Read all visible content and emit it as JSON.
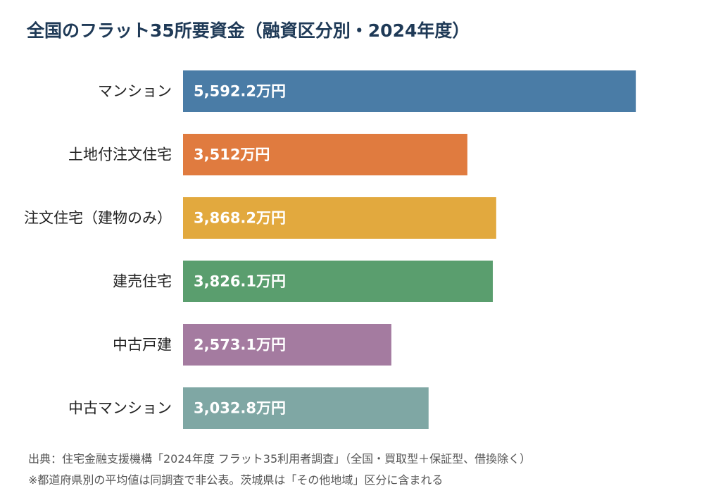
{
  "chart_data": {
    "type": "bar",
    "orientation": "horizontal",
    "title": "全国のフラット35所要資金（融資区分別・2024年度）",
    "categories": [
      "マンション",
      "土地付注文住宅",
      "注文住宅（建物のみ）",
      "建売住宅",
      "中古戸建",
      "中古マンション"
    ],
    "values": [
      5592.2,
      3512,
      3868.2,
      3826.1,
      2573.1,
      3032.8
    ],
    "value_labels": [
      "5,592.2万円",
      "3,512万円",
      "3,868.2万円",
      "3,826.1万円",
      "2,573.1万円",
      "3,032.8万円"
    ],
    "colors": [
      "#4a7ca6",
      "#e07b3f",
      "#e2a93e",
      "#5a9e6e",
      "#a47ba0",
      "#7fa7a4"
    ],
    "xlim": [
      0,
      6000
    ],
    "grid": false,
    "legend": "none"
  },
  "footer": {
    "source": "出典：住宅金融支援機構「2024年度 フラット35利用者調査」（全国・買取型＋保証型、借換除く）",
    "note": "※都道府県別の平均値は同調査で非公表。茨城県は「その他地域」区分に含まれる"
  }
}
